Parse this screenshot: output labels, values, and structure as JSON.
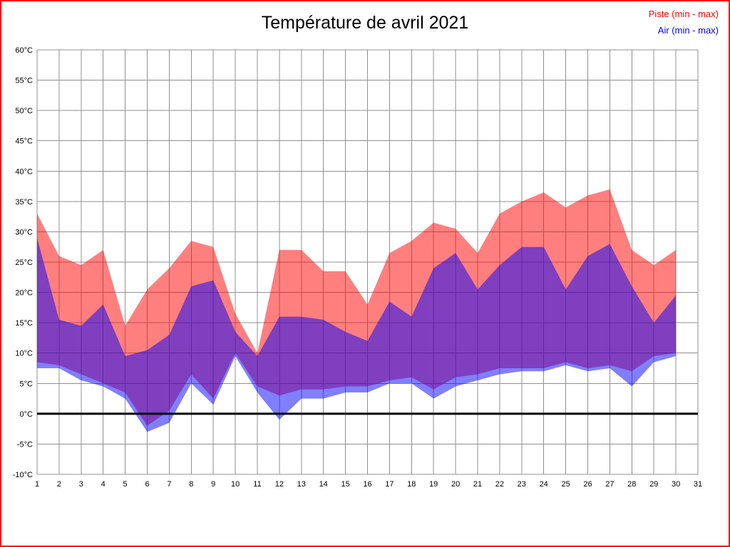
{
  "page": {
    "border_color": "#ff0000",
    "background_color": "#ffffff"
  },
  "chart_data": {
    "type": "area",
    "title": "Température de avril 2021",
    "legend": [
      {
        "label": "Piste (min - max)",
        "color": "#ff0000"
      },
      {
        "label": "Air (min - max)",
        "color": "#0000ff"
      }
    ],
    "xlim": [
      1,
      31
    ],
    "ylim": [
      -10,
      60
    ],
    "x_ticks": [
      1,
      2,
      3,
      4,
      5,
      6,
      7,
      8,
      9,
      10,
      11,
      12,
      13,
      14,
      15,
      16,
      17,
      18,
      19,
      20,
      21,
      22,
      23,
      24,
      25,
      26,
      27,
      28,
      29,
      30,
      31
    ],
    "y_ticks": [
      60,
      55,
      50,
      45,
      40,
      35,
      30,
      25,
      20,
      15,
      10,
      5,
      0,
      -5,
      -10
    ],
    "y_tick_suffix": "°C",
    "grid": true,
    "grid_color": "#909090",
    "zero_line": true,
    "zero_line_color": "#000000",
    "x": [
      1,
      2,
      3,
      4,
      5,
      6,
      7,
      8,
      9,
      10,
      11,
      12,
      13,
      14,
      15,
      16,
      17,
      18,
      19,
      20,
      21,
      22,
      23,
      24,
      25,
      26,
      27,
      28,
      29,
      30
    ],
    "series": [
      {
        "name": "Piste (min - max)",
        "band_name": "piste-band",
        "fill": "rgba(255,0,0,0.5)",
        "max": [
          33,
          26,
          24.5,
          27,
          14.5,
          20.5,
          24,
          28.5,
          27.5,
          16.5,
          10,
          27,
          27,
          23.5,
          23.5,
          18,
          26.5,
          28.5,
          31.5,
          30.5,
          26.5,
          33,
          35,
          36.5,
          34,
          36,
          37,
          27,
          24.5,
          27
        ],
        "min": [
          8.5,
          8,
          6.5,
          5,
          3.5,
          -2,
          0.5,
          6.5,
          2.5,
          10,
          4.5,
          3,
          4,
          4,
          4.5,
          4.5,
          5.5,
          6,
          4,
          6,
          6.5,
          7.5,
          7.5,
          7.5,
          8.5,
          7.5,
          8,
          7,
          9.5,
          10
        ]
      },
      {
        "name": "Air (min - max)",
        "band_name": "air-band",
        "fill": "rgba(0,0,255,0.5)",
        "max": [
          29,
          15.5,
          14.5,
          18,
          9.5,
          10.5,
          13,
          21,
          22,
          13.5,
          9.5,
          16,
          16,
          15.5,
          13.5,
          12,
          18.5,
          16,
          24,
          26.5,
          20.5,
          24.5,
          27.5,
          27.5,
          20.5,
          26,
          28,
          21,
          15,
          19.5
        ],
        "min": [
          7.5,
          7.5,
          5.5,
          4.5,
          2.5,
          -3,
          -1.5,
          5,
          1.5,
          9.5,
          3.5,
          -1,
          2.5,
          2.5,
          3.5,
          3.5,
          5,
          5,
          2.5,
          4.5,
          5.5,
          6.5,
          7,
          7,
          8,
          7,
          7.5,
          4.5,
          8.5,
          9.5
        ]
      }
    ]
  }
}
